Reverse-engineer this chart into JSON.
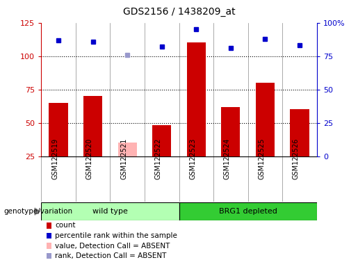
{
  "title": "GDS2156 / 1438209_at",
  "samples": [
    "GSM122519",
    "GSM122520",
    "GSM122521",
    "GSM122522",
    "GSM122523",
    "GSM122524",
    "GSM122525",
    "GSM122526"
  ],
  "count_values": [
    65,
    70,
    35,
    48,
    110,
    62,
    80,
    60
  ],
  "rank_values": [
    87,
    86,
    76,
    82,
    95,
    81,
    88,
    83
  ],
  "absent_flags": [
    false,
    false,
    true,
    false,
    false,
    false,
    false,
    false
  ],
  "bar_color_normal": "#cc0000",
  "bar_color_absent": "#ffb3b3",
  "rank_color_normal": "#0000cc",
  "rank_color_absent": "#9999cc",
  "left_ylim": [
    25,
    125
  ],
  "left_yticks": [
    25,
    50,
    75,
    100,
    125
  ],
  "right_ylim": [
    0,
    100
  ],
  "right_yticks": [
    0,
    25,
    50,
    75,
    100
  ],
  "right_yticklabels": [
    "0",
    "25",
    "50",
    "75",
    "100%"
  ],
  "groups": [
    {
      "label": "wild type",
      "start": 0,
      "end": 3,
      "color": "#b3ffb3"
    },
    {
      "label": "BRG1 depleted",
      "start": 4,
      "end": 7,
      "color": "#33cc33"
    }
  ],
  "group_label": "genotype/variation",
  "sample_bg_color": "#d3d3d3",
  "plot_bg": "#ffffff",
  "legend_items": [
    {
      "label": "count",
      "color": "#cc0000"
    },
    {
      "label": "percentile rank within the sample",
      "color": "#0000cc"
    },
    {
      "label": "value, Detection Call = ABSENT",
      "color": "#ffb3b3"
    },
    {
      "label": "rank, Detection Call = ABSENT",
      "color": "#9999cc"
    }
  ]
}
